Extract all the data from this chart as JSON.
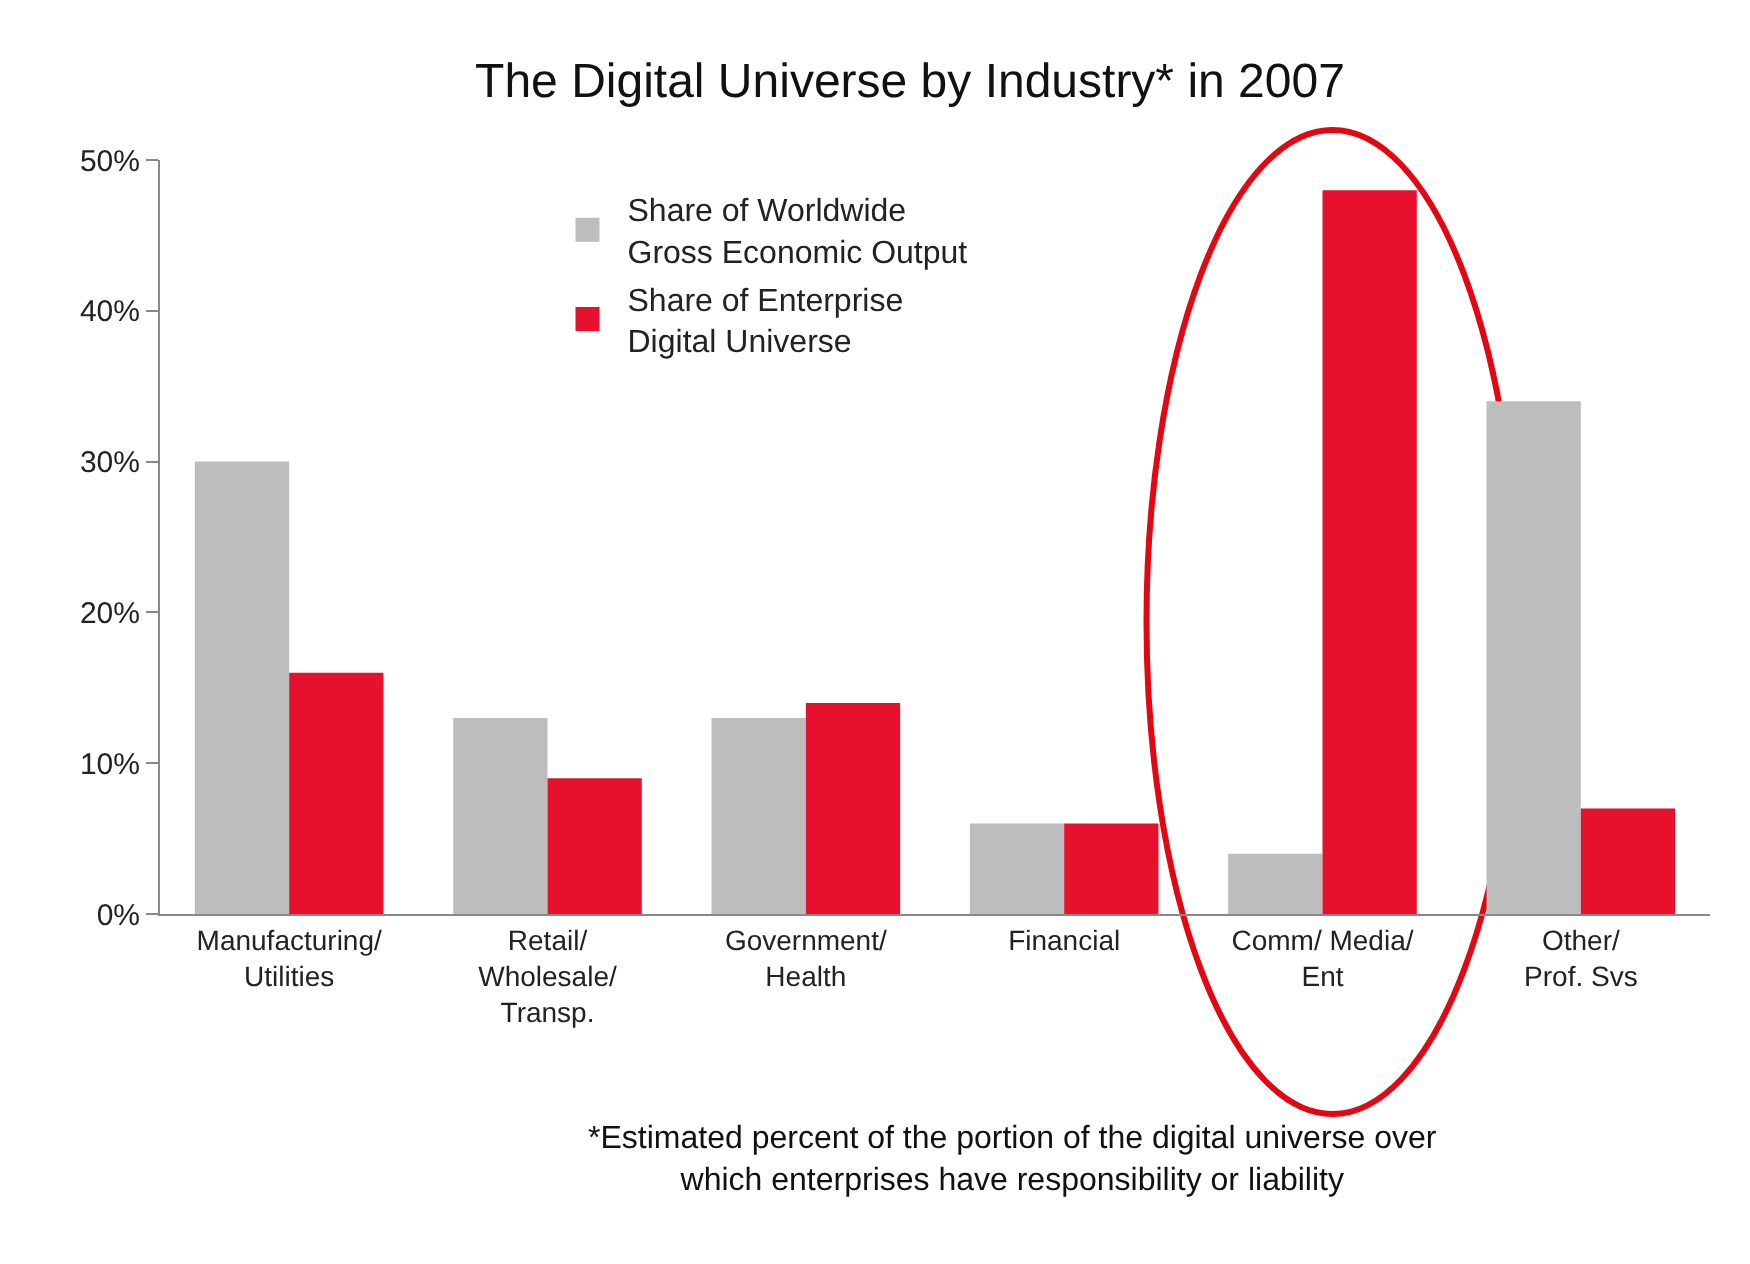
{
  "chart_data": {
    "type": "bar",
    "title": "The Digital Universe by Industry* in 2007",
    "categories": [
      "Manufacturing/\nUtilities",
      "Retail/\nWholesale/\nTransp.",
      "Government/\nHealth",
      "Financial",
      "Comm/ Media/\nEnt",
      "Other/\nProf. Svs"
    ],
    "series": [
      {
        "name": "Share of Worldwide\nGross Economic Output",
        "color": "#bdbdbd",
        "values": [
          30,
          13,
          13,
          6,
          4,
          34
        ]
      },
      {
        "name": "Share of Enterprise\nDigital Universe",
        "color": "#e8112d",
        "values": [
          16,
          9,
          14,
          6,
          48,
          7
        ]
      }
    ],
    "ylim": [
      0,
      50
    ],
    "yticks": [
      {
        "value": 0,
        "label": "0%"
      },
      {
        "value": 10,
        "label": "10%"
      },
      {
        "value": 20,
        "label": "20%"
      },
      {
        "value": 30,
        "label": "30%"
      },
      {
        "value": 40,
        "label": "40%"
      },
      {
        "value": 50,
        "label": "50%"
      }
    ],
    "grid": false,
    "legend": "top left",
    "annotations": [
      "*Estimated percent of the portion of the digital universe over\nwhich enterprises have responsibility or liability"
    ]
  }
}
